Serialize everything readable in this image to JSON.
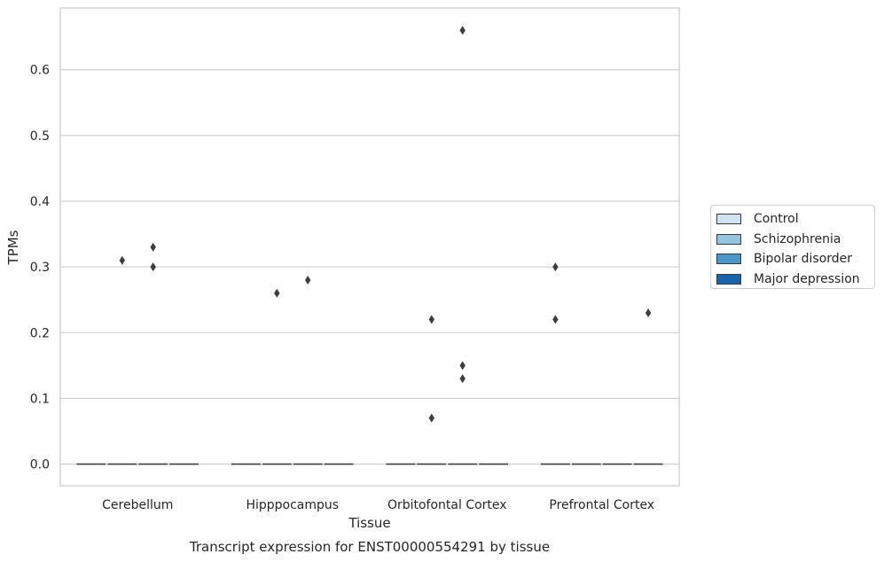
{
  "chart_data": {
    "type": "boxplot",
    "title": "Transcript expression for ENST00000554291 by tissue",
    "xlabel": "Tissue",
    "ylabel": "TPMs",
    "ylim": [
      -0.033,
      0.694
    ],
    "yticks": [
      "0.0",
      "0.1",
      "0.2",
      "0.3",
      "0.4",
      "0.5",
      "0.6"
    ],
    "grid": "horizontal",
    "legend_position": "right",
    "categories": [
      "Cerebellum",
      "Hipppocampus",
      "Orbitofontal Cortex",
      "Prefrontal Cortex"
    ],
    "series": [
      {
        "name": "Control",
        "color": "#d0e1f2",
        "medians": [
          0,
          0,
          0,
          0
        ]
      },
      {
        "name": "Schizophrenia",
        "color": "#94c4df",
        "medians": [
          0,
          0,
          0,
          0
        ]
      },
      {
        "name": "Bipolar disorder",
        "color": "#4a98c9",
        "medians": [
          0,
          0,
          0,
          0
        ]
      },
      {
        "name": "Major depression",
        "color": "#1764ab",
        "medians": [
          0,
          0,
          0,
          0
        ]
      }
    ],
    "outliers": [
      {
        "category": "Cerebellum",
        "series": "Schizophrenia",
        "y": 0.31
      },
      {
        "category": "Cerebellum",
        "series": "Bipolar disorder",
        "y": 0.33
      },
      {
        "category": "Cerebellum",
        "series": "Bipolar disorder",
        "y": 0.3
      },
      {
        "category": "Hipppocampus",
        "series": "Schizophrenia",
        "y": 0.26
      },
      {
        "category": "Hipppocampus",
        "series": "Bipolar disorder",
        "y": 0.28
      },
      {
        "category": "Orbitofontal Cortex",
        "series": "Schizophrenia",
        "y": 0.22
      },
      {
        "category": "Orbitofontal Cortex",
        "series": "Schizophrenia",
        "y": 0.07
      },
      {
        "category": "Orbitofontal Cortex",
        "series": "Bipolar disorder",
        "y": 0.66
      },
      {
        "category": "Orbitofontal Cortex",
        "series": "Bipolar disorder",
        "y": 0.15
      },
      {
        "category": "Orbitofontal Cortex",
        "series": "Bipolar disorder",
        "y": 0.13
      },
      {
        "category": "Prefrontal Cortex",
        "series": "Control",
        "y": 0.3
      },
      {
        "category": "Prefrontal Cortex",
        "series": "Control",
        "y": 0.22
      },
      {
        "category": "Prefrontal Cortex",
        "series": "Major depression",
        "y": 0.23
      }
    ]
  }
}
